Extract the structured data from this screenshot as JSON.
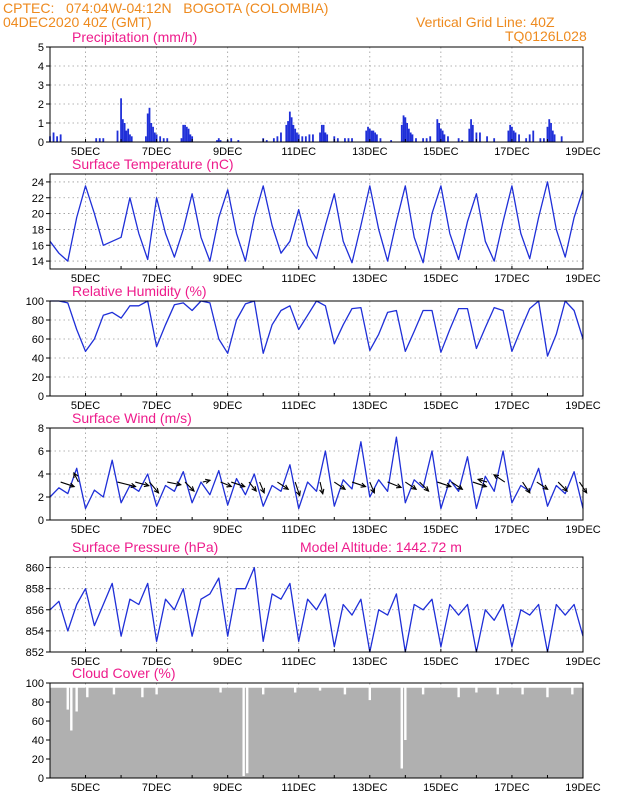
{
  "header": {
    "line1": "CPTEC:   074:04W-04:12N   BOGOTA (COLOMBIA)",
    "line2": "04DEC2020 40Z (GMT)",
    "grid_note": "Vertical Grid Line: 40Z",
    "code": "TQ0126L028"
  },
  "colors": {
    "header": "#ee8a1e",
    "title": "#ee1c8c",
    "series": "#1f2fd8",
    "bars": "#1f2fd8",
    "cloud": "#b0b0b0",
    "arrow": "#000000",
    "grid": "#9a9a9a"
  },
  "chart_data": [
    {
      "type": "bar",
      "title": "Precipitation (mm/h)",
      "ylim": [
        0,
        5
      ],
      "yticks": [
        "0",
        "1",
        "2",
        "3",
        "4",
        "5"
      ],
      "xlim": [
        4,
        19
      ],
      "xticks": [
        {
          "x": 5,
          "label": "5DEC"
        },
        {
          "x": 7,
          "label": "7DEC"
        },
        {
          "x": 9,
          "label": "9DEC"
        },
        {
          "x": 11,
          "label": "11DEC"
        },
        {
          "x": 13,
          "label": "13DEC"
        },
        {
          "x": 15,
          "label": "15DEC"
        },
        {
          "x": 17,
          "label": "17DEC"
        },
        {
          "x": 19,
          "label": "19DEC"
        }
      ],
      "x": [
        4.0,
        4.1,
        4.2,
        4.3,
        5.3,
        5.4,
        5.5,
        5.9,
        6.0,
        6.05,
        6.1,
        6.15,
        6.2,
        6.25,
        6.3,
        6.7,
        6.75,
        6.8,
        6.85,
        6.9,
        6.95,
        7.0,
        7.1,
        7.2,
        7.3,
        7.7,
        7.75,
        7.8,
        7.85,
        7.9,
        7.95,
        8.0,
        8.7,
        8.75,
        8.8,
        9.0,
        9.1,
        9.3,
        10.0,
        10.1,
        10.3,
        10.4,
        10.5,
        10.65,
        10.7,
        10.75,
        10.8,
        10.85,
        10.9,
        10.95,
        11.0,
        11.1,
        11.2,
        11.3,
        11.4,
        11.6,
        11.65,
        11.7,
        11.75,
        11.8,
        12.0,
        12.1,
        12.3,
        12.4,
        12.5,
        12.9,
        12.95,
        13.0,
        13.05,
        13.1,
        13.15,
        13.2,
        13.3,
        13.6,
        13.9,
        13.95,
        14.0,
        14.05,
        14.1,
        14.15,
        14.2,
        14.3,
        14.5,
        14.6,
        14.7,
        14.9,
        14.95,
        15.0,
        15.05,
        15.1,
        15.2,
        15.5,
        15.6,
        15.8,
        15.85,
        15.9,
        16.0,
        16.1,
        16.3,
        16.5,
        16.9,
        16.95,
        17.0,
        17.05,
        17.1,
        17.2,
        17.4,
        17.5,
        17.6,
        17.8,
        17.9,
        18.0,
        18.05,
        18.1,
        18.15,
        18.2,
        18.4
      ],
      "values": [
        0.3,
        0.5,
        0.3,
        0.4,
        0.2,
        0.2,
        0.2,
        0.6,
        2.3,
        1.2,
        1.0,
        0.6,
        0.7,
        0.4,
        0.3,
        0.3,
        1.5,
        1.8,
        1.0,
        0.8,
        0.5,
        0.4,
        0.3,
        0.2,
        0.2,
        0.2,
        0.9,
        0.9,
        0.8,
        0.7,
        0.4,
        0.3,
        0.1,
        0.2,
        0.1,
        0.1,
        0.2,
        0.1,
        0.2,
        0.1,
        0.2,
        0.3,
        0.5,
        0.9,
        1.1,
        1.6,
        1.3,
        0.9,
        0.7,
        0.5,
        0.4,
        0.3,
        0.3,
        0.4,
        0.4,
        0.5,
        0.9,
        0.9,
        0.5,
        0.4,
        0.3,
        0.2,
        0.2,
        0.2,
        0.2,
        0.6,
        0.8,
        0.7,
        0.6,
        0.6,
        0.5,
        0.4,
        0.2,
        0.1,
        0.9,
        1.4,
        1.3,
        1.0,
        0.7,
        0.5,
        0.4,
        0.2,
        0.2,
        0.2,
        0.3,
        1.2,
        1.0,
        0.7,
        0.6,
        0.4,
        0.3,
        0.2,
        0.1,
        0.7,
        1.2,
        0.9,
        0.5,
        0.5,
        0.3,
        0.2,
        0.6,
        0.9,
        0.8,
        0.6,
        0.5,
        0.4,
        0.2,
        0.4,
        0.6,
        0.2,
        0.2,
        0.8,
        1.2,
        1.0,
        0.6,
        0.4,
        0.3
      ]
    },
    {
      "type": "line",
      "title": "Surface Temperature (nC)",
      "ylim": [
        13,
        25
      ],
      "yticks": [
        "14",
        "16",
        "18",
        "20",
        "22",
        "24"
      ],
      "xlim": [
        4,
        19
      ],
      "xticks": [
        {
          "x": 5,
          "label": "5DEC"
        },
        {
          "x": 7,
          "label": "7DEC"
        },
        {
          "x": 9,
          "label": "9DEC"
        },
        {
          "x": 11,
          "label": "11DEC"
        },
        {
          "x": 13,
          "label": "13DEC"
        },
        {
          "x": 15,
          "label": "15DEC"
        },
        {
          "x": 17,
          "label": "17DEC"
        },
        {
          "x": 19,
          "label": "19DEC"
        }
      ],
      "x": [
        4.0,
        4.25,
        4.5,
        4.75,
        5.0,
        5.25,
        5.5,
        5.75,
        6.0,
        6.25,
        6.5,
        6.75,
        7.0,
        7.25,
        7.5,
        7.75,
        8.0,
        8.25,
        8.5,
        8.75,
        9.0,
        9.25,
        9.5,
        9.75,
        10.0,
        10.25,
        10.5,
        10.75,
        11.0,
        11.25,
        11.5,
        11.75,
        12.0,
        12.25,
        12.5,
        12.75,
        13.0,
        13.25,
        13.5,
        13.75,
        14.0,
        14.25,
        14.5,
        14.75,
        15.0,
        15.25,
        15.5,
        15.75,
        16.0,
        16.25,
        16.5,
        16.75,
        17.0,
        17.25,
        17.5,
        17.75,
        18.0,
        18.25,
        18.5,
        18.75,
        19.0
      ],
      "values": [
        16.5,
        15.0,
        14.0,
        19.5,
        23.5,
        20.0,
        16.0,
        16.5,
        17.0,
        22.0,
        17.5,
        14.2,
        22.0,
        17.5,
        14.5,
        18.0,
        22.5,
        17.0,
        14.0,
        19.5,
        23.0,
        17.5,
        14.0,
        19.5,
        23.5,
        18.5,
        15.0,
        16.5,
        20.5,
        16.0,
        14.3,
        18.5,
        22.5,
        16.5,
        13.8,
        18.5,
        23.5,
        18.0,
        14.0,
        19.0,
        23.5,
        17.0,
        13.8,
        20.0,
        23.5,
        17.5,
        14.2,
        19.0,
        22.5,
        16.5,
        14.0,
        19.0,
        23.5,
        17.5,
        14.3,
        19.5,
        24.0,
        18.0,
        14.5,
        19.5,
        23.0
      ]
    },
    {
      "type": "line",
      "title": "Relative Humidity (%)",
      "ylim": [
        0,
        100
      ],
      "yticks": [
        "0",
        "20",
        "40",
        "60",
        "80",
        "100"
      ],
      "xlim": [
        4,
        19
      ],
      "xticks": [
        {
          "x": 5,
          "label": "5DEC"
        },
        {
          "x": 7,
          "label": "7DEC"
        },
        {
          "x": 9,
          "label": "9DEC"
        },
        {
          "x": 11,
          "label": "11DEC"
        },
        {
          "x": 13,
          "label": "13DEC"
        },
        {
          "x": 15,
          "label": "15DEC"
        },
        {
          "x": 17,
          "label": "17DEC"
        },
        {
          "x": 19,
          "label": "19DEC"
        }
      ],
      "x": [
        4.0,
        4.25,
        4.5,
        4.75,
        5.0,
        5.25,
        5.5,
        5.75,
        6.0,
        6.25,
        6.5,
        6.75,
        7.0,
        7.25,
        7.5,
        7.75,
        8.0,
        8.25,
        8.5,
        8.75,
        9.0,
        9.25,
        9.5,
        9.75,
        10.0,
        10.25,
        10.5,
        10.75,
        11.0,
        11.25,
        11.5,
        11.75,
        12.0,
        12.25,
        12.5,
        12.75,
        13.0,
        13.25,
        13.5,
        13.75,
        14.0,
        14.25,
        14.5,
        14.75,
        15.0,
        15.25,
        15.5,
        15.75,
        16.0,
        16.25,
        16.5,
        16.75,
        17.0,
        17.25,
        17.5,
        17.75,
        18.0,
        18.25,
        18.5,
        18.75,
        19.0
      ],
      "values": [
        100,
        100,
        98,
        70,
        47,
        60,
        85,
        88,
        82,
        95,
        95,
        100,
        52,
        75,
        96,
        98,
        90,
        100,
        98,
        60,
        45,
        80,
        97,
        100,
        45,
        75,
        90,
        95,
        70,
        85,
        100,
        95,
        55,
        75,
        92,
        93,
        48,
        65,
        88,
        90,
        47,
        68,
        90,
        90,
        46,
        70,
        92,
        92,
        50,
        72,
        93,
        90,
        47,
        70,
        92,
        100,
        42,
        65,
        100,
        90,
        60
      ]
    },
    {
      "type": "line",
      "title": "Surface Wind (m/s)",
      "ylim": [
        0,
        8
      ],
      "yticks": [
        "0",
        "2",
        "4",
        "6",
        "8"
      ],
      "xlim": [
        4,
        19
      ],
      "xticks": [
        {
          "x": 5,
          "label": "5DEC"
        },
        {
          "x": 7,
          "label": "7DEC"
        },
        {
          "x": 9,
          "label": "9DEC"
        },
        {
          "x": 11,
          "label": "11DEC"
        },
        {
          "x": 13,
          "label": "13DEC"
        },
        {
          "x": 15,
          "label": "15DEC"
        },
        {
          "x": 17,
          "label": "17DEC"
        },
        {
          "x": 19,
          "label": "19DEC"
        }
      ],
      "x": [
        4.0,
        4.25,
        4.5,
        4.75,
        5.0,
        5.25,
        5.5,
        5.75,
        6.0,
        6.25,
        6.5,
        6.75,
        7.0,
        7.25,
        7.5,
        7.75,
        8.0,
        8.25,
        8.5,
        8.75,
        9.0,
        9.25,
        9.5,
        9.75,
        10.0,
        10.25,
        10.5,
        10.75,
        11.0,
        11.25,
        11.5,
        11.75,
        12.0,
        12.25,
        12.5,
        12.75,
        13.0,
        13.25,
        13.5,
        13.75,
        14.0,
        14.25,
        14.5,
        14.75,
        15.0,
        15.25,
        15.5,
        15.75,
        16.0,
        16.25,
        16.5,
        16.75,
        17.0,
        17.25,
        17.5,
        17.75,
        18.0,
        18.25,
        18.5,
        18.75,
        19.0
      ],
      "values": [
        2.0,
        2.8,
        2.3,
        4.5,
        1.0,
        2.6,
        2.0,
        5.2,
        1.5,
        3.0,
        2.5,
        4.0,
        1.2,
        3.0,
        2.5,
        4.2,
        1.5,
        3.3,
        2.2,
        4.3,
        1.3,
        3.6,
        2.2,
        4.0,
        1.2,
        3.0,
        2.5,
        4.8,
        1.0,
        3.3,
        2.5,
        6.0,
        1.2,
        3.5,
        2.7,
        6.8,
        2.0,
        3.5,
        2.5,
        7.2,
        1.5,
        3.5,
        2.8,
        6.0,
        1.0,
        3.5,
        2.5,
        5.5,
        1.0,
        3.8,
        2.5,
        6.0,
        1.5,
        3.0,
        2.5,
        4.5,
        1.2,
        3.0,
        2.3,
        4.2,
        1.0
      ],
      "vectors": [
        {
          "x": 4.3,
          "u": 1.5,
          "v": -0.5
        },
        {
          "x": 4.8,
          "u": -0.5,
          "v": 1.0
        },
        {
          "x": 5.9,
          "u": 2.0,
          "v": -0.5
        },
        {
          "x": 6.4,
          "u": 1.5,
          "v": -0.4
        },
        {
          "x": 6.8,
          "u": 1.0,
          "v": -1.2
        },
        {
          "x": 7.3,
          "u": 1.5,
          "v": -0.3
        },
        {
          "x": 7.8,
          "u": 1.0,
          "v": -1.0
        },
        {
          "x": 8.3,
          "u": 0.8,
          "v": 0.2
        },
        {
          "x": 8.8,
          "u": 1.2,
          "v": -0.5
        },
        {
          "x": 9.1,
          "u": 1.5,
          "v": -0.5
        },
        {
          "x": 9.6,
          "u": 0.8,
          "v": -1.0
        },
        {
          "x": 9.9,
          "u": 0.5,
          "v": -1.2
        },
        {
          "x": 10.4,
          "u": 1.2,
          "v": -0.8
        },
        {
          "x": 10.9,
          "u": 0.5,
          "v": -1.5
        },
        {
          "x": 11.6,
          "u": 0.3,
          "v": -1.3
        },
        {
          "x": 12.0,
          "u": 1.2,
          "v": -0.8
        },
        {
          "x": 12.5,
          "u": 1.5,
          "v": -0.5
        },
        {
          "x": 13.0,
          "u": 0.5,
          "v": -1.2
        },
        {
          "x": 13.5,
          "u": 1.5,
          "v": -0.6
        },
        {
          "x": 14.0,
          "u": 1.2,
          "v": -0.8
        },
        {
          "x": 14.4,
          "u": 1.0,
          "v": -1.0
        },
        {
          "x": 14.9,
          "u": 1.5,
          "v": -0.5
        },
        {
          "x": 15.3,
          "u": 1.2,
          "v": -0.8
        },
        {
          "x": 15.9,
          "u": 1.5,
          "v": -0.5
        },
        {
          "x": 16.3,
          "u": -1.0,
          "v": 0.3
        },
        {
          "x": 16.8,
          "u": -1.2,
          "v": 0.8
        },
        {
          "x": 17.3,
          "u": 0.8,
          "v": -1.2
        },
        {
          "x": 17.7,
          "u": 1.2,
          "v": -0.8
        },
        {
          "x": 18.3,
          "u": 1.0,
          "v": -1.0
        },
        {
          "x": 18.9,
          "u": 0.8,
          "v": -1.2
        }
      ]
    },
    {
      "type": "line",
      "title": "Surface Pressure (hPa)",
      "annotation": "Model Altitude: 1442.72 m",
      "ylim": [
        852,
        861
      ],
      "yticks": [
        "852",
        "854",
        "856",
        "858",
        "860"
      ],
      "xlim": [
        4,
        19
      ],
      "xticks": [
        {
          "x": 5,
          "label": "5DEC"
        },
        {
          "x": 7,
          "label": "7DEC"
        },
        {
          "x": 9,
          "label": "9DEC"
        },
        {
          "x": 11,
          "label": "11DEC"
        },
        {
          "x": 13,
          "label": "13DEC"
        },
        {
          "x": 15,
          "label": "15DEC"
        },
        {
          "x": 17,
          "label": "17DEC"
        },
        {
          "x": 19,
          "label": "19DEC"
        }
      ],
      "x": [
        4.0,
        4.25,
        4.5,
        4.75,
        5.0,
        5.25,
        5.5,
        5.75,
        6.0,
        6.25,
        6.5,
        6.75,
        7.0,
        7.25,
        7.5,
        7.75,
        8.0,
        8.25,
        8.5,
        8.75,
        9.0,
        9.25,
        9.5,
        9.75,
        10.0,
        10.25,
        10.5,
        10.75,
        11.0,
        11.25,
        11.5,
        11.75,
        12.0,
        12.25,
        12.5,
        12.75,
        13.0,
        13.25,
        13.5,
        13.75,
        14.0,
        14.25,
        14.5,
        14.75,
        15.0,
        15.25,
        15.5,
        15.75,
        16.0,
        16.25,
        16.5,
        16.75,
        17.0,
        17.25,
        17.5,
        17.75,
        18.0,
        18.25,
        18.5,
        18.75,
        19.0
      ],
      "values": [
        856.0,
        856.8,
        854.0,
        856.5,
        858.0,
        854.5,
        856.5,
        858.5,
        853.5,
        857.0,
        856.5,
        858.5,
        853.0,
        857.0,
        856.0,
        858.0,
        853.5,
        857.0,
        857.5,
        859.0,
        853.5,
        858.0,
        858.0,
        860.0,
        853.0,
        857.5,
        857.0,
        858.5,
        853.0,
        857.0,
        856.0,
        857.5,
        852.5,
        856.5,
        855.5,
        857.0,
        852.0,
        856.0,
        855.5,
        857.5,
        852.0,
        856.5,
        856.0,
        857.0,
        852.5,
        856.5,
        855.5,
        856.5,
        852.0,
        856.0,
        855.0,
        856.5,
        852.5,
        856.0,
        855.5,
        856.5,
        852.0,
        856.5,
        855.5,
        856.5,
        853.5
      ]
    },
    {
      "type": "bar",
      "title": "Cloud Cover (%)",
      "ylim": [
        0,
        100
      ],
      "yticks": [
        "0",
        "20",
        "40",
        "60",
        "80",
        "100"
      ],
      "xlim": [
        4,
        19
      ],
      "xticks": [
        {
          "x": 5,
          "label": "5DEC"
        },
        {
          "x": 7,
          "label": "7DEC"
        },
        {
          "x": 9,
          "label": "9DEC"
        },
        {
          "x": 11,
          "label": "11DEC"
        },
        {
          "x": 13,
          "label": "13DEC"
        },
        {
          "x": 15,
          "label": "15DEC"
        },
        {
          "x": 17,
          "label": "17DEC"
        },
        {
          "x": 19,
          "label": "19DEC"
        }
      ],
      "base": 95,
      "dips": [
        {
          "x": 4.5,
          "value": 72
        },
        {
          "x": 4.6,
          "value": 50
        },
        {
          "x": 4.75,
          "value": 70
        },
        {
          "x": 5.05,
          "value": 85
        },
        {
          "x": 5.8,
          "value": 88
        },
        {
          "x": 6.6,
          "value": 85
        },
        {
          "x": 7.0,
          "value": 88
        },
        {
          "x": 8.8,
          "value": 90
        },
        {
          "x": 9.45,
          "value": 2
        },
        {
          "x": 9.55,
          "value": 5
        },
        {
          "x": 10.0,
          "value": 88
        },
        {
          "x": 10.9,
          "value": 90
        },
        {
          "x": 11.6,
          "value": 92
        },
        {
          "x": 12.3,
          "value": 88
        },
        {
          "x": 13.0,
          "value": 82
        },
        {
          "x": 13.9,
          "value": 10
        },
        {
          "x": 14.0,
          "value": 40
        },
        {
          "x": 14.5,
          "value": 88
        },
        {
          "x": 15.5,
          "value": 85
        },
        {
          "x": 16.0,
          "value": 90
        },
        {
          "x": 16.6,
          "value": 88
        },
        {
          "x": 17.3,
          "value": 88
        },
        {
          "x": 18.0,
          "value": 85
        },
        {
          "x": 18.7,
          "value": 88
        }
      ]
    }
  ]
}
